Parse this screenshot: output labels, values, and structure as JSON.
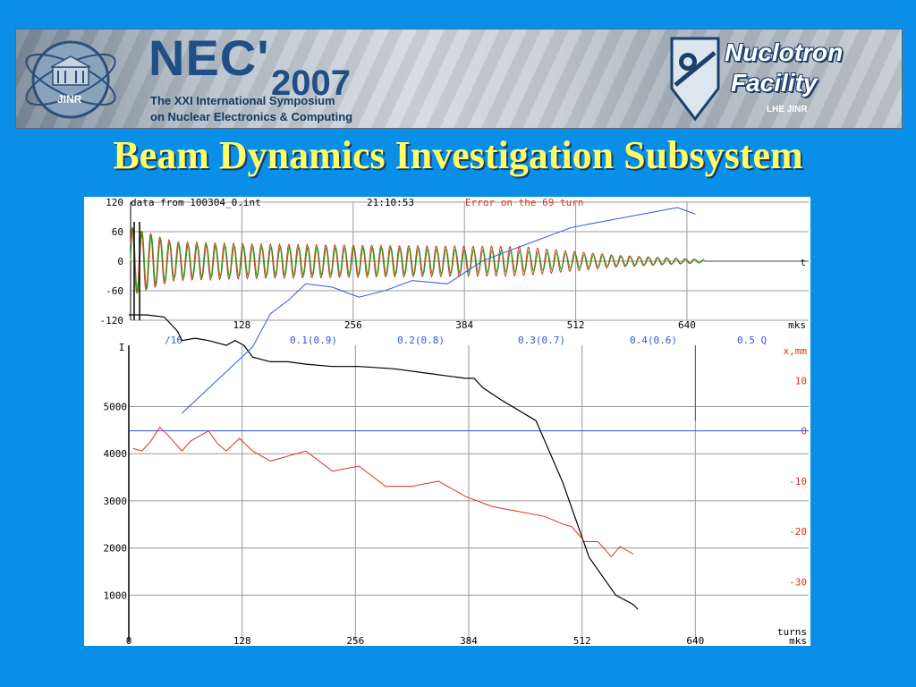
{
  "banner": {
    "logo_text": "JINR",
    "nec_title": "NEC'",
    "nec_year": "2007",
    "nec_subtitle_1": "The XXI International Symposium",
    "nec_subtitle_2": "on Nuclear Electronics & Computing",
    "facility_line_1": "Nuclotron",
    "facility_line_2": "Facility",
    "facility_lab": "LHE JINR"
  },
  "slide_title": "Beam Dynamics Investigation Subsystem",
  "colors": {
    "background": "#0a8fe8",
    "title": "#ffff66",
    "beam": "#000000",
    "green": "#1aa51a",
    "red": "#e0301e",
    "blue": "#3355e8"
  },
  "chart_data": [
    {
      "type": "line",
      "panel": "top",
      "header_text": "data from 100304_0.int",
      "time_text": "21:10:53",
      "error_text": "Error on the 69 turn",
      "x_unit": "mks",
      "y_unit": "",
      "y_ticks": [
        "120",
        "60",
        "0",
        "-60",
        "-120"
      ],
      "x_ticks": [
        "128",
        "256",
        "384",
        "512",
        "640"
      ],
      "x_end_label": "mks",
      "axis_marker": "t",
      "xlim": [
        0,
        780
      ],
      "ylim": [
        -120,
        120
      ],
      "grid": true,
      "series": [
        {
          "name": "",
          "color": "#1aa51a",
          "envelope": [
            [
              0,
              70
            ],
            [
              50,
              35
            ],
            [
              150,
              30
            ],
            [
              300,
              28
            ],
            [
              450,
              22
            ],
            [
              510,
              15
            ],
            [
              560,
              10
            ],
            [
              630,
              5
            ],
            [
              660,
              3
            ]
          ]
        },
        {
          "name": "",
          "color": "#e0301e",
          "envelope": [
            [
              0,
              70
            ],
            [
              50,
              40
            ],
            [
              150,
              35
            ],
            [
              300,
              32
            ],
            [
              450,
              30
            ],
            [
              510,
              20
            ],
            [
              560,
              12
            ],
            [
              630,
              6
            ],
            [
              660,
              3
            ]
          ]
        }
      ]
    },
    {
      "type": "line",
      "panel": "bottom",
      "left_axis_label": "I",
      "right_axis_label": "x,mm",
      "x_label": "turns",
      "x_unit": "mks",
      "tune_scale": [
        "/16",
        "0.1(0.9)",
        "0.2(0.8)",
        "0.3(0.7)",
        "0.4(0.6)",
        "0.5 Q"
      ],
      "y_ticks": [
        "5000",
        "4000",
        "3000",
        "2000",
        "1000"
      ],
      "x_ticks": [
        "0",
        "128",
        "256",
        "384",
        "512",
        "640"
      ],
      "right_ticks": [
        "10",
        "0",
        "-10",
        "-20",
        "-30"
      ],
      "xlim": [
        0,
        768
      ],
      "ylim": [
        0,
        6300
      ],
      "right_ylim": [
        -42,
        17
      ],
      "grid": true,
      "series": [
        {
          "name": "",
          "color": "#000000",
          "x": [
            0,
            20,
            40,
            55,
            60,
            75,
            90,
            110,
            120,
            130,
            140,
            150,
            160,
            180,
            200,
            230,
            260,
            300,
            340,
            380,
            390,
            400,
            420,
            460,
            490,
            520,
            550,
            570,
            575
          ],
          "y": [
            7100,
            7000,
            6900,
            6600,
            6400,
            6450,
            6400,
            6300,
            6400,
            6300,
            6050,
            6000,
            5950,
            5950,
            5900,
            5850,
            5850,
            5800,
            5700,
            5600,
            5600,
            5400,
            5150,
            4700,
            3400,
            1800,
            1000,
            800,
            700
          ]
        },
        {
          "name": "",
          "color": "#e0301e",
          "x": [
            5,
            15,
            25,
            35,
            45,
            60,
            70,
            80,
            90,
            100,
            110,
            125,
            140,
            160,
            180,
            200,
            230,
            260,
            290,
            320,
            350,
            380,
            410,
            440,
            470,
            490,
            500,
            515,
            530,
            545,
            555,
            570
          ],
          "y": [
            -3.5,
            -4,
            -2,
            0.7,
            -1,
            -4,
            -2,
            -1,
            0,
            -2.5,
            -4,
            -1.5,
            -4,
            -6,
            -5,
            -4,
            -8,
            -7,
            -11,
            -11,
            -10,
            -13,
            -15,
            -16,
            -17,
            -18.5,
            -19,
            -22,
            -22,
            -25,
            -23,
            -24.5
          ]
        },
        {
          "name": "",
          "color": "#3355e8",
          "x": [
            60,
            100,
            140,
            160,
            180,
            200,
            230,
            260,
            290,
            320,
            360,
            400,
            430,
            460,
            480,
            500,
            520,
            540,
            580,
            620,
            640
          ],
          "y": [
            0.0,
            0.05,
            0.1,
            0.15,
            0.17,
            0.195,
            0.19,
            0.175,
            0.185,
            0.2,
            0.195,
            0.23,
            0.245,
            0.26,
            0.27,
            0.28,
            0.285,
            0.29,
            0.3,
            0.31,
            0.3
          ]
        }
      ]
    }
  ]
}
